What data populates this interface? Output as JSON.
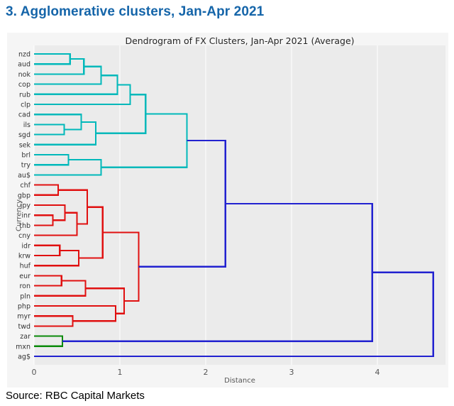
{
  "page": {
    "title": "3. Agglomerative clusters, Jan-Apr 2021",
    "source": "Source: RBC Capital Markets"
  },
  "colors": {
    "heading": "#1565a9",
    "figure_bg": "#f5f5f5",
    "plot_bg": "#ebebeb",
    "grid": "#ffffff",
    "teal": "#00b8ba",
    "red": "#e01010",
    "green": "#0a8a0a",
    "blue": "#2222d0",
    "axis_text": "#555555",
    "label_text": "#333333"
  },
  "chart_data": {
    "type": "dendrogram",
    "title": "Dendrogram of FX Clusters, Jan-Apr 2021 (Average)",
    "xlabel": "Distance",
    "ylabel": "Currency",
    "x_ticks": [
      0,
      1,
      2,
      3,
      4
    ],
    "xlim": [
      0,
      4.79
    ],
    "orientation": "leaves-left",
    "leaves": [
      "nzd",
      "aud",
      "nok",
      "cop",
      "rub",
      "clp",
      "cad",
      "ils",
      "sgd",
      "sek",
      "brl",
      "try",
      "au$",
      "chf",
      "gbp",
      "jpy",
      "inr",
      "thb",
      "cny",
      "idr",
      "krw",
      "huf",
      "eur",
      "ron",
      "pln",
      "php",
      "myr",
      "twd",
      "zar",
      "mxn",
      "ag$"
    ],
    "clusters": [
      {
        "name": "teal-cluster",
        "color_key": "teal",
        "members": [
          "nzd",
          "aud",
          "nok",
          "cop",
          "rub",
          "clp",
          "cad",
          "ils",
          "sgd",
          "sek",
          "brl",
          "try",
          "au$"
        ]
      },
      {
        "name": "red-cluster",
        "color_key": "red",
        "members": [
          "chf",
          "gbp",
          "jpy",
          "inr",
          "thb",
          "cny",
          "idr",
          "krw",
          "huf",
          "eur",
          "ron",
          "pln",
          "php",
          "myr",
          "twd"
        ]
      },
      {
        "name": "green-cluster",
        "color_key": "green",
        "members": [
          "zar",
          "mxn"
        ]
      },
      {
        "name": "singleton",
        "color_key": "blue",
        "members": [
          "ag$"
        ]
      }
    ],
    "tree": {
      "d": 4.65,
      "color": "blue",
      "children": [
        {
          "d": 3.94,
          "color": "blue",
          "children": [
            {
              "d": 2.23,
              "color": "blue",
              "children": [
                {
                  "d": 1.78,
                  "color": "teal",
                  "children": [
                    {
                      "d": 1.3,
                      "color": "teal",
                      "children": [
                        {
                          "d": 1.12,
                          "color": "teal",
                          "children": [
                            {
                              "d": 0.97,
                              "color": "teal",
                              "children": [
                                {
                                  "d": 0.78,
                                  "color": "teal",
                                  "children": [
                                    {
                                      "d": 0.58,
                                      "color": "teal",
                                      "children": [
                                        {
                                          "d": 0.42,
                                          "color": "teal",
                                          "children": [
                                            {
                                              "leaf": "nzd"
                                            },
                                            {
                                              "leaf": "aud"
                                            }
                                          ]
                                        },
                                        {
                                          "leaf": "nok"
                                        }
                                      ]
                                    },
                                    {
                                      "leaf": "cop"
                                    }
                                  ]
                                },
                                {
                                  "leaf": "rub"
                                }
                              ]
                            },
                            {
                              "leaf": "clp"
                            }
                          ]
                        },
                        {
                          "d": 0.72,
                          "color": "teal",
                          "children": [
                            {
                              "d": 0.55,
                              "color": "teal",
                              "children": [
                                {
                                  "leaf": "cad"
                                },
                                {
                                  "d": 0.35,
                                  "color": "teal",
                                  "children": [
                                    {
                                      "leaf": "ils"
                                    },
                                    {
                                      "leaf": "sgd"
                                    }
                                  ]
                                }
                              ]
                            },
                            {
                              "leaf": "sek"
                            }
                          ]
                        }
                      ]
                    },
                    {
                      "d": 0.78,
                      "color": "teal",
                      "children": [
                        {
                          "d": 0.4,
                          "color": "teal",
                          "children": [
                            {
                              "leaf": "brl"
                            },
                            {
                              "leaf": "try"
                            }
                          ]
                        },
                        {
                          "leaf": "au$"
                        }
                      ]
                    }
                  ]
                },
                {
                  "d": 1.22,
                  "color": "red",
                  "children": [
                    {
                      "d": 0.8,
                      "color": "red",
                      "children": [
                        {
                          "d": 0.62,
                          "color": "red",
                          "children": [
                            {
                              "d": 0.28,
                              "color": "red",
                              "children": [
                                {
                                  "leaf": "chf"
                                },
                                {
                                  "leaf": "gbp"
                                }
                              ]
                            },
                            {
                              "d": 0.5,
                              "color": "red",
                              "children": [
                                {
                                  "d": 0.36,
                                  "color": "red",
                                  "children": [
                                    {
                                      "leaf": "jpy"
                                    },
                                    {
                                      "d": 0.22,
                                      "color": "red",
                                      "children": [
                                        {
                                          "leaf": "inr"
                                        },
                                        {
                                          "leaf": "thb"
                                        }
                                      ]
                                    }
                                  ]
                                },
                                {
                                  "leaf": "cny"
                                }
                              ]
                            }
                          ]
                        },
                        {
                          "d": 0.52,
                          "color": "red",
                          "children": [
                            {
                              "d": 0.3,
                              "color": "red",
                              "children": [
                                {
                                  "leaf": "idr"
                                },
                                {
                                  "leaf": "krw"
                                }
                              ]
                            },
                            {
                              "leaf": "huf"
                            }
                          ]
                        }
                      ]
                    },
                    {
                      "d": 1.05,
                      "color": "red",
                      "children": [
                        {
                          "d": 0.6,
                          "color": "red",
                          "children": [
                            {
                              "d": 0.32,
                              "color": "red",
                              "children": [
                                {
                                  "leaf": "eur"
                                },
                                {
                                  "leaf": "ron"
                                }
                              ]
                            },
                            {
                              "leaf": "pln"
                            }
                          ]
                        },
                        {
                          "d": 0.95,
                          "color": "red",
                          "children": [
                            {
                              "leaf": "php"
                            },
                            {
                              "d": 0.45,
                              "color": "red",
                              "children": [
                                {
                                  "leaf": "myr"
                                },
                                {
                                  "leaf": "twd"
                                }
                              ]
                            }
                          ]
                        }
                      ]
                    }
                  ]
                }
              ]
            },
            {
              "d": 0.33,
              "color": "green",
              "children": [
                {
                  "leaf": "zar"
                },
                {
                  "leaf": "mxn"
                }
              ]
            }
          ]
        },
        {
          "leaf": "ag$"
        }
      ]
    }
  }
}
